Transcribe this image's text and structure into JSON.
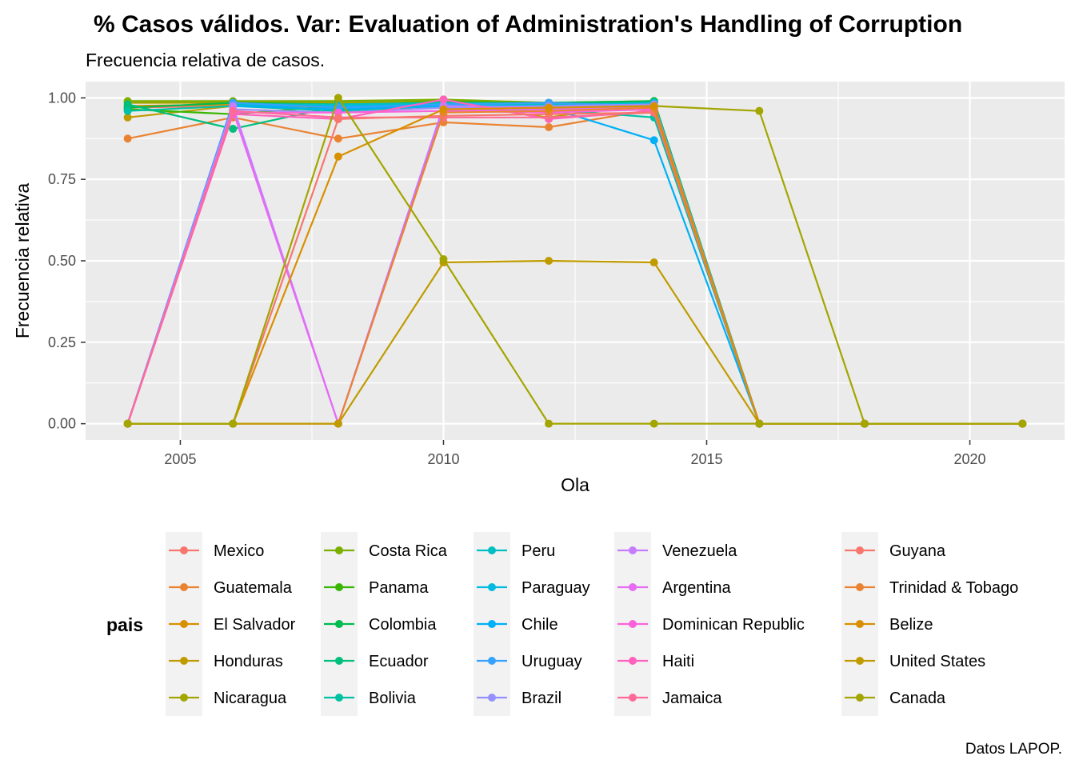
{
  "chart_data": {
    "type": "line",
    "title": "% Casos válidos. Var: Evaluation of Administration's Handling of Corruption",
    "subtitle": "Frecuencia relativa de casos.",
    "xlabel": "Ola",
    "ylabel": "Frecuencia relativa",
    "caption": "Datos LAPOP.",
    "legend_title": "pais",
    "legend_position": "bottom",
    "grid": true,
    "xlim": [
      2003.2,
      2021.8
    ],
    "ylim": [
      -0.05,
      1.05
    ],
    "x_ticks": [
      2005,
      2010,
      2015,
      2020
    ],
    "x_tick_labels": [
      "2005",
      "2010",
      "2015",
      "2020"
    ],
    "y_ticks": [
      0,
      0.25,
      0.5,
      0.75,
      1.0
    ],
    "y_tick_labels": [
      "0.00",
      "0.25",
      "0.50",
      "0.75",
      "1.00"
    ],
    "x": [
      2004,
      2006,
      2008,
      2010,
      2012,
      2014,
      2016,
      2018,
      2021
    ],
    "series": [
      {
        "name": "Mexico",
        "color": "#F8766D",
        "values": [
          0.97,
          0.975,
          0.975,
          0.98,
          0.97,
          0.975,
          0,
          0,
          0
        ]
      },
      {
        "name": "Guatemala",
        "color": "#EA8331",
        "values": [
          0.875,
          0.94,
          0.875,
          0.925,
          0.91,
          0.965,
          0,
          0,
          0
        ]
      },
      {
        "name": "El Salvador",
        "color": "#D89000",
        "values": [
          0.975,
          0.98,
          0.97,
          0.975,
          0.955,
          0.975,
          0,
          0,
          0
        ]
      },
      {
        "name": "Honduras",
        "color": "#C09B00",
        "values": [
          0.94,
          0.975,
          0.985,
          0.985,
          0.94,
          0.99,
          0,
          0,
          0
        ]
      },
      {
        "name": "Nicaragua",
        "color": "#A3A500",
        "values": [
          0.985,
          0.985,
          0.985,
          0.99,
          0.98,
          0.975,
          0.96,
          0,
          0
        ]
      },
      {
        "name": "Costa Rica",
        "color": "#7CAE00",
        "values": [
          0.99,
          0.99,
          0.99,
          0.995,
          0.985,
          0.99,
          0,
          0,
          0
        ]
      },
      {
        "name": "Panama",
        "color": "#39B600",
        "values": [
          0.965,
          0.95,
          0.975,
          0.99,
          0.98,
          0.99,
          0,
          0,
          0
        ]
      },
      {
        "name": "Colombia",
        "color": "#00BB4E",
        "values": [
          0.97,
          0.985,
          0.98,
          0.985,
          0.985,
          0.99,
          0,
          0,
          0
        ]
      },
      {
        "name": "Ecuador",
        "color": "#00BF7D",
        "values": [
          0.98,
          0.905,
          0.975,
          0.98,
          0.975,
          0.985,
          0,
          0,
          0
        ]
      },
      {
        "name": "Bolivia",
        "color": "#00C1A3",
        "values": [
          0.96,
          0.975,
          0.96,
          0.975,
          0.965,
          0.94,
          0,
          0,
          0
        ]
      },
      {
        "name": "Peru",
        "color": "#00BFC4",
        "values": [
          0,
          0.98,
          0.98,
          0.985,
          0.98,
          0.985,
          0,
          0,
          0
        ]
      },
      {
        "name": "Paraguay",
        "color": "#00BAE0",
        "values": [
          0,
          0.975,
          0.975,
          0.98,
          0.975,
          0.985,
          0,
          0,
          0
        ]
      },
      {
        "name": "Chile",
        "color": "#00B0F6",
        "values": [
          0,
          0.975,
          0.965,
          0.975,
          0.97,
          0.87,
          0,
          0,
          0
        ]
      },
      {
        "name": "Uruguay",
        "color": "#35A2FF",
        "values": [
          0,
          0.985,
          0.97,
          0.98,
          0.985,
          0.975,
          0,
          0,
          0
        ]
      },
      {
        "name": "Brazil",
        "color": "#9590FF",
        "values": [
          0,
          0.965,
          0.955,
          0.97,
          0.975,
          0.98,
          0,
          0,
          0
        ]
      },
      {
        "name": "Venezuela",
        "color": "#C77CFF",
        "values": [
          0,
          0.975,
          0,
          0.975,
          0.97,
          0.975,
          0,
          0,
          0
        ]
      },
      {
        "name": "Argentina",
        "color": "#E76BF3",
        "values": [
          0,
          0.96,
          0,
          0.96,
          0.965,
          0.97,
          0,
          0,
          0
        ]
      },
      {
        "name": "Dominican Republic",
        "color": "#FA62DB",
        "values": [
          0,
          0.955,
          0.955,
          0.96,
          0.955,
          0.965,
          0,
          0,
          0
        ]
      },
      {
        "name": "Haiti",
        "color": "#FF62BC",
        "values": [
          0,
          0.95,
          0.935,
          0.995,
          0.935,
          0.96,
          0,
          0,
          0
        ]
      },
      {
        "name": "Jamaica",
        "color": "#FF6A98",
        "values": [
          0,
          0.96,
          0.94,
          0.94,
          0.94,
          0.955,
          0,
          0,
          0
        ]
      },
      {
        "name": "Guyana",
        "color": "#F8766D",
        "values": [
          0,
          0,
          0.935,
          0.945,
          0.95,
          0.955,
          0,
          0,
          0
        ]
      },
      {
        "name": "Trinidad & Tobago",
        "color": "#EA8331",
        "values": [
          0,
          0,
          0,
          0.955,
          0.96,
          0.97,
          0,
          0,
          0
        ]
      },
      {
        "name": "Belize",
        "color": "#D89000",
        "values": [
          0,
          0,
          0.82,
          0.965,
          0.97,
          0.975,
          0,
          0,
          0
        ]
      },
      {
        "name": "United States",
        "color": "#C09B00",
        "values": [
          0,
          0,
          0,
          0.495,
          0.5,
          0.495,
          0,
          0,
          0
        ]
      },
      {
        "name": "Canada",
        "color": "#A3A500",
        "values": [
          0,
          0,
          1.0,
          0.505,
          0,
          0,
          0,
          0,
          0
        ]
      }
    ]
  }
}
